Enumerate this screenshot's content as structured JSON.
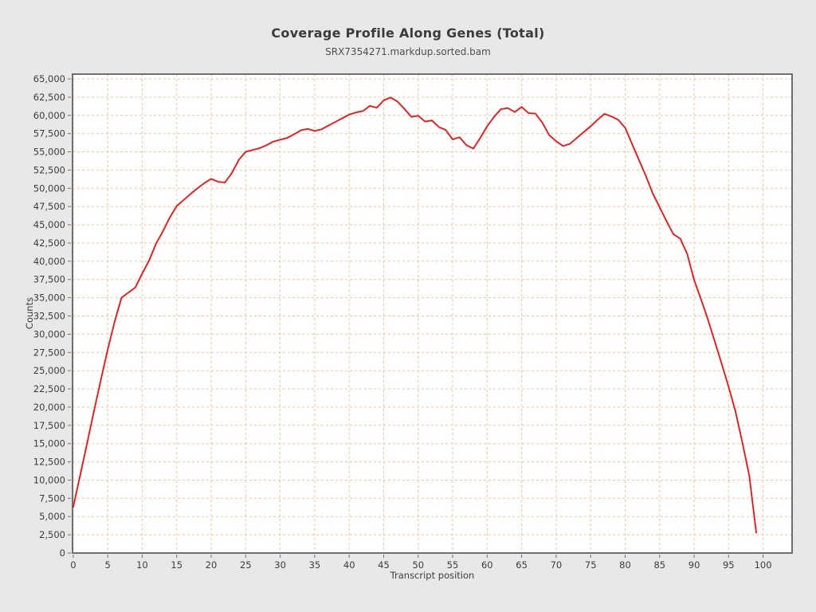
{
  "header": {
    "title": "Coverage Profile Along Genes (Total)",
    "subtitle": "SRX7354271.markdup.sorted.bam"
  },
  "styles": {
    "page_bg": "#e8e8e8",
    "plot_bg": "#ffffff",
    "grid_color": "#f1c39a",
    "border_color": "#6f6f6f",
    "text_color": "#3c3c3c"
  },
  "chart_data": {
    "type": "line",
    "title": "Coverage Profile Along Genes (Total)",
    "subtitle": "SRX7354271.markdup.sorted.bam",
    "xlabel": "Transcript position",
    "ylabel": "Counts",
    "xlim": [
      -0.1,
      104.2
    ],
    "ylim": [
      0,
      65655
    ],
    "grid": "dashed both axes",
    "legend_position": "none",
    "x_tick_values": [
      0,
      5,
      10,
      15,
      20,
      25,
      30,
      35,
      40,
      45,
      50,
      55,
      60,
      65,
      70,
      75,
      80,
      85,
      90,
      95,
      100
    ],
    "x_tick_labels": [
      "0",
      "5",
      "10",
      "15",
      "20",
      "25",
      "30",
      "35",
      "40",
      "45",
      "50",
      "55",
      "60",
      "65",
      "70",
      "75",
      "80",
      "85",
      "90",
      "95",
      "100"
    ],
    "y_tick_values": [
      0,
      2500,
      5000,
      7500,
      10000,
      12500,
      15000,
      17500,
      20000,
      22500,
      25000,
      27500,
      30000,
      32500,
      35000,
      37500,
      40000,
      42500,
      45000,
      47500,
      50000,
      52500,
      55000,
      57500,
      60000,
      62500,
      65000
    ],
    "y_tick_labels": [
      "0",
      "2,500",
      "5,000",
      "7,500",
      "10,000",
      "12,500",
      "15,000",
      "17,500",
      "20,000",
      "22,500",
      "25,000",
      "27,500",
      "30,000",
      "32,500",
      "35,000",
      "37,500",
      "40,000",
      "42,500",
      "45,000",
      "47,500",
      "50,000",
      "52,500",
      "55,000",
      "57,500",
      "60,000",
      "62,500",
      "65,000"
    ],
    "series": [
      {
        "name": "SRX7354271.markdup.sorted.bam",
        "color": "#fb0a0a",
        "x": [
          0,
          1,
          2,
          3,
          4,
          5,
          6,
          7,
          8,
          9,
          10,
          11,
          12,
          13,
          14,
          15,
          16,
          17,
          18,
          19,
          20,
          21,
          22,
          23,
          24,
          25,
          26,
          27,
          28,
          29,
          30,
          31,
          32,
          33,
          34,
          35,
          36,
          37,
          38,
          39,
          40,
          41,
          42,
          43,
          44,
          45,
          46,
          47,
          48,
          49,
          50,
          51,
          52,
          53,
          54,
          55,
          56,
          57,
          58,
          59,
          60,
          61,
          62,
          63,
          64,
          65,
          66,
          67,
          68,
          69,
          70,
          71,
          72,
          73,
          74,
          75,
          76,
          77,
          78,
          79,
          80,
          81,
          82,
          83,
          84,
          85,
          86,
          87,
          88,
          89,
          90,
          91,
          92,
          93,
          94,
          95,
          96,
          97,
          98,
          99
        ],
        "values": [
          6300,
          10600,
          15000,
          19400,
          23700,
          27900,
          31700,
          35000,
          35700,
          36400,
          38300,
          40100,
          42400,
          44100,
          46000,
          47550,
          48400,
          49200,
          50000,
          50700,
          51300,
          50900,
          50800,
          52100,
          53900,
          55000,
          55250,
          55500,
          55900,
          56400,
          56650,
          56900,
          57400,
          57950,
          58150,
          57850,
          58100,
          58600,
          59100,
          59600,
          60100,
          60400,
          60600,
          61300,
          61050,
          62050,
          62450,
          61900,
          60900,
          59800,
          59950,
          59150,
          59300,
          58400,
          58000,
          56700,
          57000,
          55900,
          55450,
          56900,
          58500,
          59800,
          60850,
          61000,
          60450,
          61150,
          60300,
          60250,
          59000,
          57300,
          56450,
          55800,
          56100,
          56900,
          57700,
          58500,
          59400,
          60200,
          59850,
          59400,
          58300,
          56100,
          53900,
          51700,
          49300,
          47400,
          45500,
          43700,
          43100,
          41000,
          37400,
          34800,
          32000,
          29000,
          25900,
          22800,
          19400,
          15100,
          10600,
          2800
        ]
      }
    ]
  }
}
